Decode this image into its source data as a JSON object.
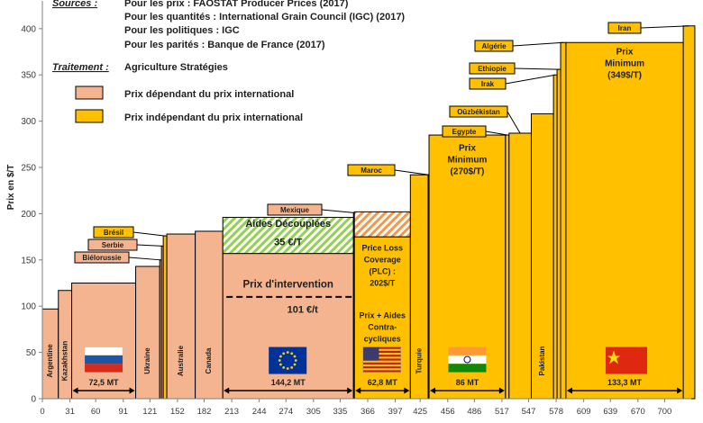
{
  "chart_data": {
    "type": "bar",
    "variant": "variable-width cost curve",
    "ylabel": "Prix en $/T",
    "ylim": [
      0,
      430
    ],
    "yticks": [
      0,
      50,
      100,
      150,
      200,
      250,
      300,
      350,
      400
    ],
    "xlim": [
      0,
      730
    ],
    "xticks": [
      0,
      31,
      60,
      91,
      121,
      152,
      182,
      213,
      244,
      274,
      305,
      335,
      366,
      397,
      425,
      456,
      486,
      517,
      547,
      578,
      609,
      639,
      670,
      700
    ],
    "legend": {
      "peach_label": "Prix dépendant du prix international",
      "gold_label": "Prix indépendant du prix international"
    },
    "sources": {
      "heading": "Sources :",
      "lines": [
        "Pour les prix : FAOSTAT Producer Prices (2017)",
        "Pour les quantités : International Grain Council (IGC) (2017)",
        "Pour les politiques : IGC",
        "Pour les parités : Banque de France (2017)"
      ],
      "traitement_heading": "Traitement :",
      "traitement": "Agriculture Stratégies"
    },
    "countries": [
      {
        "name": "Argentine",
        "x0": 0,
        "x1": 18,
        "price": 97,
        "kind": "peach",
        "vlabel": true
      },
      {
        "name": "Kazakhstan",
        "x0": 18,
        "x1": 33,
        "price": 117,
        "kind": "peach",
        "vlabel": true
      },
      {
        "name": "Russie",
        "x0": 33,
        "x1": 105,
        "price": 125,
        "kind": "peach",
        "vlabel": false
      },
      {
        "name": "Ukraine",
        "x0": 105,
        "x1": 132,
        "price": 143,
        "kind": "peach",
        "vlabel": true
      },
      {
        "name": "Biélorussie",
        "x0": 132,
        "x1": 134,
        "price": 150,
        "kind": "peach",
        "vlabel": false
      },
      {
        "name": "Serbie",
        "x0": 134,
        "x1": 136,
        "price": 165,
        "kind": "peach",
        "vlabel": false
      },
      {
        "name": "Brésil",
        "x0": 136,
        "x1": 140,
        "price": 176,
        "kind": "gold",
        "vlabel": false
      },
      {
        "name": "Australie",
        "x0": 140,
        "x1": 172,
        "price": 178,
        "kind": "peach",
        "vlabel": true
      },
      {
        "name": "Canada",
        "x0": 172,
        "x1": 203,
        "price": 181,
        "kind": "peach",
        "vlabel": true
      },
      {
        "name": "UE",
        "x0": 203,
        "x1": 350,
        "price": 157,
        "kind": "peach",
        "vlabel": false,
        "top": 196
      },
      {
        "name": "Mexique",
        "x0": 350,
        "x1": 351,
        "price": 201,
        "kind": "peach",
        "vlabel": false
      },
      {
        "name": "USA",
        "x0": 351,
        "x1": 414,
        "price": 175,
        "kind": "gold",
        "vlabel": false,
        "top": 202
      },
      {
        "name": "Turquie",
        "x0": 414,
        "x1": 434,
        "price": 242,
        "kind": "gold",
        "vlabel": true
      },
      {
        "name": "Maroc",
        "x0": 434,
        "x1": 435,
        "price": 242,
        "kind": "gold",
        "vlabel": false
      },
      {
        "name": "Inde",
        "x0": 435,
        "x1": 521,
        "price": 285,
        "kind": "gold",
        "vlabel": false
      },
      {
        "name": "Egypte",
        "x0": 521,
        "x1": 525,
        "price": 285,
        "kind": "gold",
        "vlabel": false
      },
      {
        "name": "Oûzbékistan",
        "x0": 525,
        "x1": 550,
        "price": 287,
        "kind": "gold",
        "vlabel": false
      },
      {
        "name": "Pakistan",
        "x0": 550,
        "x1": 575,
        "price": 308,
        "kind": "gold",
        "vlabel": true
      },
      {
        "name": "Irak",
        "x0": 575,
        "x1": 579,
        "price": 350,
        "kind": "gold",
        "vlabel": false
      },
      {
        "name": "Ethiopie",
        "x0": 579,
        "x1": 583,
        "price": 356,
        "kind": "gold",
        "vlabel": false
      },
      {
        "name": "Algérie",
        "x0": 583,
        "x1": 589,
        "price": 385,
        "kind": "gold",
        "vlabel": false
      },
      {
        "name": "Chine",
        "x0": 589,
        "x1": 721,
        "price": 385,
        "kind": "gold",
        "vlabel": false
      },
      {
        "name": "Iran",
        "x0": 721,
        "x1": 734,
        "price": 403,
        "kind": "gold",
        "vlabel": false
      }
    ],
    "callouts": [
      {
        "text": "Biélorussie",
        "target": "Biélorussie"
      },
      {
        "text": "Serbie",
        "target": "Serbie"
      },
      {
        "text": "Brésil",
        "target": "Brésil"
      },
      {
        "text": "Mexique",
        "target": "Mexique"
      },
      {
        "text": "Maroc",
        "target": "Maroc"
      },
      {
        "text": "Egypte",
        "target": "Egypte"
      },
      {
        "text": "Oûzbékistan",
        "target": "Oûzbékistan"
      },
      {
        "text": "Irak",
        "target": "Irak"
      },
      {
        "text": "Ethiopie",
        "target": "Ethiopie"
      },
      {
        "text": "Algérie",
        "target": "Algérie"
      },
      {
        "text": "Iran",
        "target": "Iran"
      }
    ],
    "eu": {
      "aides_label": "Aides Découplées",
      "aides_value": "35 €/T",
      "intervention_label": "Prix d'intervention",
      "intervention_value": "101 €/t",
      "intervention_level": 110
    },
    "usa": {
      "plc_lines": [
        "Price Loss",
        "Coverage",
        "(PLC) :",
        "202$/T"
      ],
      "aides_lines": [
        "Prix + Aides",
        "Contra-",
        "cycliques"
      ]
    },
    "india_box": [
      "Prix",
      "Minimum",
      "(270$/T)"
    ],
    "china_box": [
      "Prix",
      "Minimum",
      "(349$/T)"
    ],
    "quantities": [
      {
        "text": "72,5 MT",
        "x0": 33,
        "x1": 105
      },
      {
        "text": "144,2 MT",
        "x0": 203,
        "x1": 350
      },
      {
        "text": "62,8 MT",
        "x0": 351,
        "x1": 414
      },
      {
        "text": "86 MT",
        "x0": 435,
        "x1": 521
      },
      {
        "text": "133,3 MT",
        "x0": 589,
        "x1": 721
      }
    ],
    "flags": [
      {
        "country": "Russie",
        "xc": 69
      },
      {
        "country": "UE",
        "xc": 276
      },
      {
        "country": "USA",
        "xc": 382
      },
      {
        "country": "Inde",
        "xc": 478
      },
      {
        "country": "Chine",
        "xc": 655
      }
    ],
    "colors": {
      "peach": "#F4B48F",
      "gold": "#FFC000",
      "hatch_green": "#92D050",
      "hatch_orange": "#F79646",
      "axis": "#7f7f7f"
    }
  }
}
